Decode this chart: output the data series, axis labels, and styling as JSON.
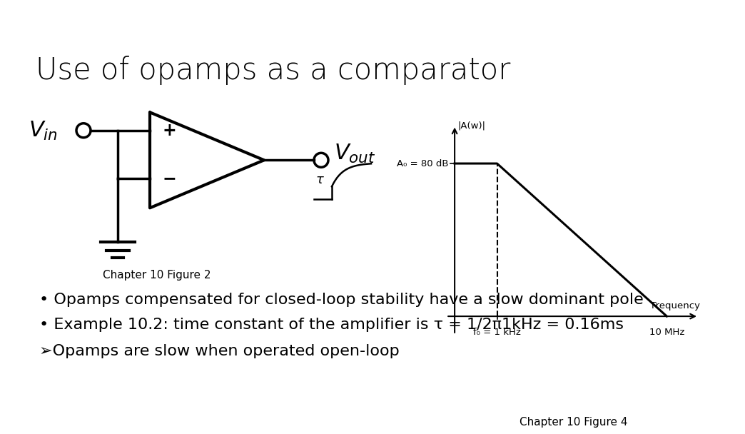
{
  "title": "Use of opamps as a comparator",
  "title_fontsize": 30,
  "background_color": "#ffffff",
  "bullet1": "Opamps compensated for closed-loop stability have a slow dominant pole",
  "bullet2": "Example 10.2: time constant of the amplifier is τ = 1/2π1kHz = 0.16ms",
  "arrow_text": "➢Opamps are slow when operated open-loop",
  "fig2_caption": "Chapter 10 Figure 2",
  "fig4_caption": "Chapter 10 Figure 4",
  "graph_label_y": "|A(w)|",
  "graph_label_x": "Frequency",
  "graph_a0_label": "A₀ = 80 dB",
  "graph_f0_label": "f₀ = 1 kHz",
  "graph_fmax_label": "10 MHz",
  "bullet_fontsize": 16,
  "caption_fontsize": 11
}
